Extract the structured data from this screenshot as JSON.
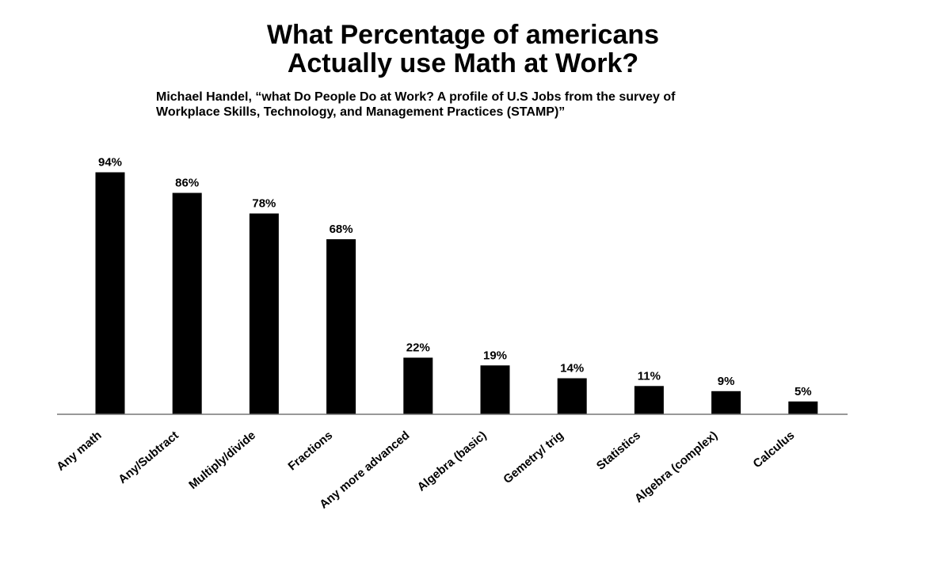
{
  "title_lines": [
    "What Percentage of americans",
    "Actually use Math at Work?"
  ],
  "subtitle_lines": [
    "Michael Handel, “what Do People Do at Work? A profile of U.S Jobs from the survey of",
    "Workplace Skills, Technology, and Management Practices (STAMP)”"
  ],
  "chart_data": {
    "type": "bar",
    "title": "What Percentage of americans Actually use Math at Work?",
    "subtitle": "Michael Handel, “what Do People Do at Work? A profile of U.S Jobs from the survey of Workplace Skills, Technology, and Management Practices (STAMP)”",
    "xlabel": "",
    "ylabel": "",
    "categories": [
      "Any math",
      "Any/Subtract",
      "Multiply/divide",
      "Fractions",
      "Any more advanced",
      "Algebra (basic)",
      "Gemetry/ trig",
      "Statistics",
      "Algebra (complex)",
      "Calculus"
    ],
    "values": [
      94,
      86,
      78,
      68,
      22,
      19,
      14,
      11,
      9,
      5
    ],
    "value_labels": [
      "94%",
      "86%",
      "78%",
      "68%",
      "22%",
      "19%",
      "14%",
      "11%",
      "9%",
      "5%"
    ],
    "unit": "%",
    "ylim": [
      0,
      100
    ],
    "grid": false,
    "legend": "none",
    "bar_color": "#000000"
  }
}
